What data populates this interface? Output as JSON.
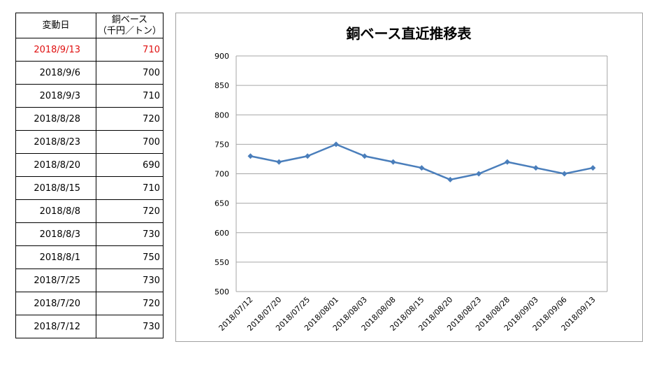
{
  "table": {
    "header_date": "変動日",
    "header_price_line1": "銅ベース",
    "header_price_line2": "（千円／トン）",
    "rows": [
      {
        "date": "2018/9/13",
        "price": "710"
      },
      {
        "date": "2018/9/6",
        "price": "700"
      },
      {
        "date": "2018/9/3",
        "price": "710"
      },
      {
        "date": "2018/8/28",
        "price": "720"
      },
      {
        "date": "2018/8/23",
        "price": "700"
      },
      {
        "date": "2018/8/20",
        "price": "690"
      },
      {
        "date": "2018/8/15",
        "price": "710"
      },
      {
        "date": "2018/8/8",
        "price": "720"
      },
      {
        "date": "2018/8/3",
        "price": "730"
      },
      {
        "date": "2018/8/1",
        "price": "750"
      },
      {
        "date": "2018/7/25",
        "price": "730"
      },
      {
        "date": "2018/7/20",
        "price": "720"
      },
      {
        "date": "2018/7/12",
        "price": "730"
      }
    ],
    "latest_color": "#e01010"
  },
  "chart_data": {
    "type": "line",
    "title": "銅ベース直近推移表",
    "categories": [
      "2018/07/12",
      "2018/07/20",
      "2018/07/25",
      "2018/08/01",
      "2018/08/03",
      "2018/08/08",
      "2018/08/15",
      "2018/08/20",
      "2018/08/23",
      "2018/08/28",
      "2018/09/03",
      "2018/09/06",
      "2018/09/13"
    ],
    "values": [
      730,
      720,
      730,
      750,
      730,
      720,
      710,
      690,
      700,
      720,
      710,
      700,
      710
    ],
    "ylim": [
      500,
      900
    ],
    "yticks": [
      500,
      550,
      600,
      650,
      700,
      750,
      800,
      850,
      900
    ],
    "grid": true,
    "line_color": "#4a7ebb",
    "legend": "none"
  }
}
